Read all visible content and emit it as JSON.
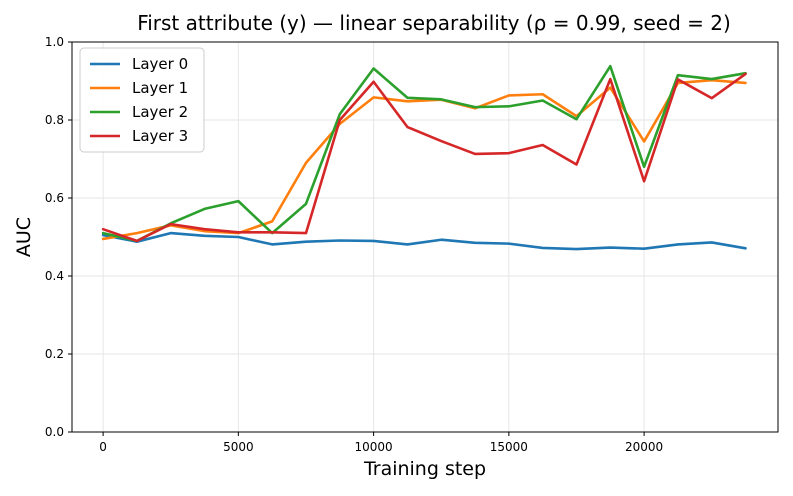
{
  "chart_data": {
    "type": "line",
    "title": "First attribute (y) — linear separability  (ρ = 0.99, seed = 2)",
    "xlabel": "Training step",
    "ylabel": "AUC",
    "xlim": [
      -1150,
      24950
    ],
    "ylim": [
      0.0,
      1.0
    ],
    "xticks": [
      0,
      5000,
      10000,
      15000,
      20000
    ],
    "yticks": [
      0.0,
      0.2,
      0.4,
      0.6,
      0.8,
      1.0
    ],
    "xtick_labels": [
      "0",
      "5000",
      "10000",
      "15000",
      "20000"
    ],
    "ytick_labels": [
      "0.0",
      "0.2",
      "0.4",
      "0.6",
      "0.8",
      "1.0"
    ],
    "grid": true,
    "legend_position": "top-left",
    "x": [
      0,
      1250,
      2500,
      3750,
      5000,
      6250,
      7500,
      8750,
      10000,
      11250,
      12500,
      13750,
      15000,
      16250,
      17500,
      18750,
      20000,
      21250,
      22500,
      23750
    ],
    "series": [
      {
        "name": "Layer 0",
        "color": "#1f77b4",
        "values": [
          0.505,
          0.488,
          0.51,
          0.503,
          0.5,
          0.481,
          0.488,
          0.491,
          0.49,
          0.481,
          0.493,
          0.485,
          0.483,
          0.472,
          0.469,
          0.473,
          0.47,
          0.481,
          0.486,
          0.471
        ]
      },
      {
        "name": "Layer 1",
        "color": "#ff7f0e",
        "values": [
          0.495,
          0.51,
          0.53,
          0.515,
          0.51,
          0.54,
          0.69,
          0.79,
          0.858,
          0.848,
          0.852,
          0.83,
          0.863,
          0.866,
          0.81,
          0.883,
          0.745,
          0.895,
          0.902,
          0.895
        ]
      },
      {
        "name": "Layer 2",
        "color": "#2ca02c",
        "values": [
          0.51,
          0.49,
          0.535,
          0.572,
          0.592,
          0.51,
          0.585,
          0.815,
          0.932,
          0.857,
          0.853,
          0.833,
          0.835,
          0.85,
          0.802,
          0.938,
          0.68,
          0.915,
          0.905,
          0.92
        ]
      },
      {
        "name": "Layer 3",
        "color": "#d62728",
        "values": [
          0.52,
          0.49,
          0.533,
          0.52,
          0.512,
          0.512,
          0.51,
          0.8,
          0.898,
          0.782,
          0.746,
          0.713,
          0.715,
          0.736,
          0.686,
          0.905,
          0.643,
          0.904,
          0.856,
          0.918
        ]
      }
    ]
  }
}
